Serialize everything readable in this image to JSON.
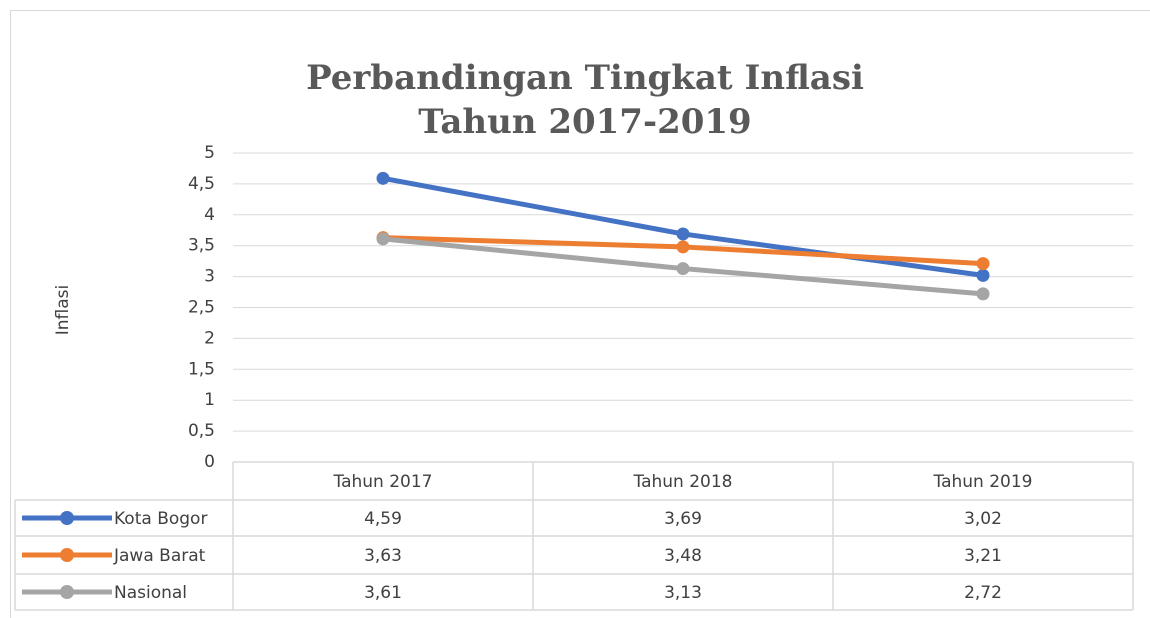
{
  "chart_data": {
    "type": "line",
    "title": [
      "Perbandingan Tingkat Inflasi",
      "Tahun 2017-2019"
    ],
    "y_label": "Inflasi",
    "categories": [
      "Tahun 2017",
      "Tahun 2018",
      "Tahun 2019"
    ],
    "series": [
      {
        "name": "Kota Bogor",
        "color": "#4472c4",
        "values": [
          4.59,
          3.69,
          3.02
        ],
        "value_labels": [
          "4,59",
          "3,69",
          "3,02"
        ]
      },
      {
        "name": "Jawa Barat",
        "color": "#ed7d31",
        "values": [
          3.63,
          3.48,
          3.21
        ],
        "value_labels": [
          "3,63",
          "3,48",
          "3,21"
        ]
      },
      {
        "name": "Nasional",
        "color": "#a5a5a5",
        "values": [
          3.61,
          3.13,
          2.72
        ],
        "value_labels": [
          "3,61",
          "3,13",
          "2,72"
        ]
      }
    ],
    "ylim": [
      0,
      5
    ],
    "yticks": [
      0,
      {
        "value": 0.5,
        "label": "0,5"
      },
      1,
      {
        "value": 1.5,
        "label": "1,5"
      },
      2,
      {
        "value": 2.5,
        "label": "2,5"
      },
      3,
      {
        "value": 3.5,
        "label": "3,5"
      },
      4,
      {
        "value": 4.5,
        "label": "4,5"
      },
      5
    ],
    "grid": true
  }
}
